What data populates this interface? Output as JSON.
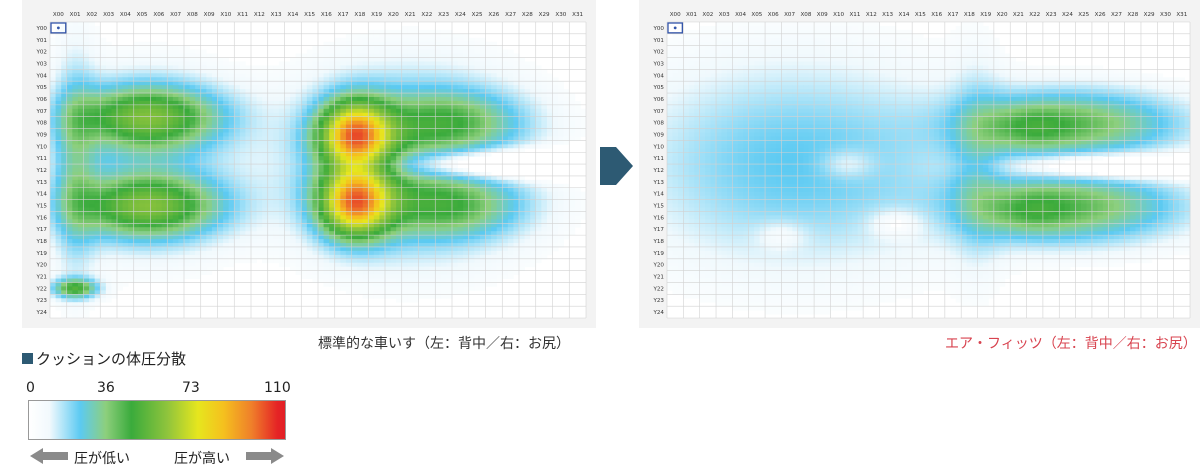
{
  "arrow_icon": "chevron-right-arrow-icon",
  "colors": {
    "arrow": "#2d5a73",
    "legend_square": "#2d5a73",
    "caption_right": "#d8434f",
    "grid_bg": "#f3f3f3",
    "grid_line": "#d2d2d2",
    "corner_marker": "#3355aa"
  },
  "legend": {
    "title": "クッションの体圧分散",
    "ticks": [
      {
        "value": 0,
        "label": "0"
      },
      {
        "value": 36,
        "label": "36"
      },
      {
        "value": 73,
        "label": "73"
      },
      {
        "value": 110,
        "label": "110"
      }
    ],
    "low_label": "圧が低い",
    "high_label": "圧が高い",
    "left_arrow_icon": "arrow-left-icon",
    "right_arrow_icon": "arrow-right-icon"
  },
  "chart_data": [
    {
      "type": "heatmap",
      "caption": "標準的な車いす（左：背中／右：お尻）",
      "x_labels": [
        "X00",
        "X01",
        "X02",
        "X03",
        "X04",
        "X05",
        "X06",
        "X07",
        "X08",
        "X09",
        "X10",
        "X11",
        "X12",
        "X13",
        "X14",
        "X15",
        "X16",
        "X17",
        "X18",
        "X19",
        "X20",
        "X21",
        "X22",
        "X23",
        "X24",
        "X25",
        "X26",
        "X27",
        "X28",
        "X29",
        "X30",
        "X31"
      ],
      "y_labels": [
        "Y00",
        "Y01",
        "Y02",
        "Y03",
        "Y04",
        "Y05",
        "Y06",
        "Y07",
        "Y08",
        "Y09",
        "Y10",
        "Y11",
        "Y12",
        "Y13",
        "Y14",
        "Y15",
        "Y16",
        "Y17",
        "Y18",
        "Y19",
        "Y20",
        "Y21",
        "Y22",
        "Y23",
        "Y24"
      ],
      "value_range": [
        0,
        110
      ],
      "regions": [
        {
          "area": "back",
          "x_range": [
            1,
            11
          ],
          "y_range": [
            3,
            21
          ],
          "approx_value": 45
        },
        {
          "area": "back-peak-upper",
          "x_range": [
            4,
            6
          ],
          "y_range": [
            7,
            9
          ],
          "approx_value": 60
        },
        {
          "area": "back-peak-lower",
          "x_range": [
            4,
            6
          ],
          "y_range": [
            15,
            17
          ],
          "approx_value": 60
        },
        {
          "area": "back-corner",
          "x_range": [
            1,
            2
          ],
          "y_range": [
            22,
            23
          ],
          "approx_value": 70
        },
        {
          "area": "buttocks",
          "x_range": [
            15,
            28
          ],
          "y_range": [
            5,
            21
          ],
          "approx_value": 50
        },
        {
          "area": "buttocks-core",
          "x_range": [
            16,
            20
          ],
          "y_range": [
            9,
            17
          ],
          "approx_value": 110
        }
      ]
    },
    {
      "type": "heatmap",
      "caption": "エア・フィッツ（左：背中／右：お尻）",
      "x_labels": [
        "X00",
        "X01",
        "X02",
        "X03",
        "X04",
        "X05",
        "X06",
        "X07",
        "X08",
        "X09",
        "X10",
        "X11",
        "X12",
        "X13",
        "X14",
        "X15",
        "X16",
        "X17",
        "X18",
        "X19",
        "X20",
        "X21",
        "X22",
        "X23",
        "X24",
        "X25",
        "X26",
        "X27",
        "X28",
        "X29",
        "X30",
        "X31"
      ],
      "y_labels": [
        "Y00",
        "Y01",
        "Y02",
        "Y03",
        "Y04",
        "Y05",
        "Y06",
        "Y07",
        "Y08",
        "Y09",
        "Y10",
        "Y11",
        "Y12",
        "Y13",
        "Y14",
        "Y15",
        "Y16",
        "Y17",
        "Y18",
        "Y19",
        "Y20",
        "Y21",
        "Y22",
        "Y23",
        "Y24"
      ],
      "value_range": [
        0,
        110
      ],
      "regions": [
        {
          "area": "back",
          "x_range": [
            1,
            17
          ],
          "y_range": [
            4,
            21
          ],
          "approx_value": 22
        },
        {
          "area": "buttocks",
          "x_range": [
            18,
            31
          ],
          "y_range": [
            5,
            21
          ],
          "approx_value": 45
        },
        {
          "area": "buttocks-peak-upper",
          "x_range": [
            20,
            24
          ],
          "y_range": [
            8,
            11
          ],
          "approx_value": 60
        },
        {
          "area": "buttocks-peak-lower",
          "x_range": [
            20,
            24
          ],
          "y_range": [
            14,
            18
          ],
          "approx_value": 60
        }
      ]
    }
  ]
}
